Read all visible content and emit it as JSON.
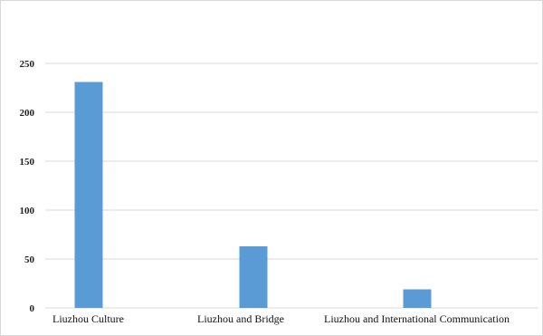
{
  "chart_data": {
    "type": "bar",
    "title": "",
    "xlabel": "",
    "ylabel": "",
    "categories": [
      "Liuzhou Culture",
      "Liuzhou and Bridge",
      "Liuzhou and  International Communication"
    ],
    "values": [
      231,
      63,
      19
    ],
    "ylim": [
      0,
      250
    ],
    "yticks": [
      0,
      50,
      100,
      150,
      200,
      250
    ],
    "grid": true,
    "bar_color": "#5b9bd5",
    "grid_color": "#d9d9d9"
  }
}
